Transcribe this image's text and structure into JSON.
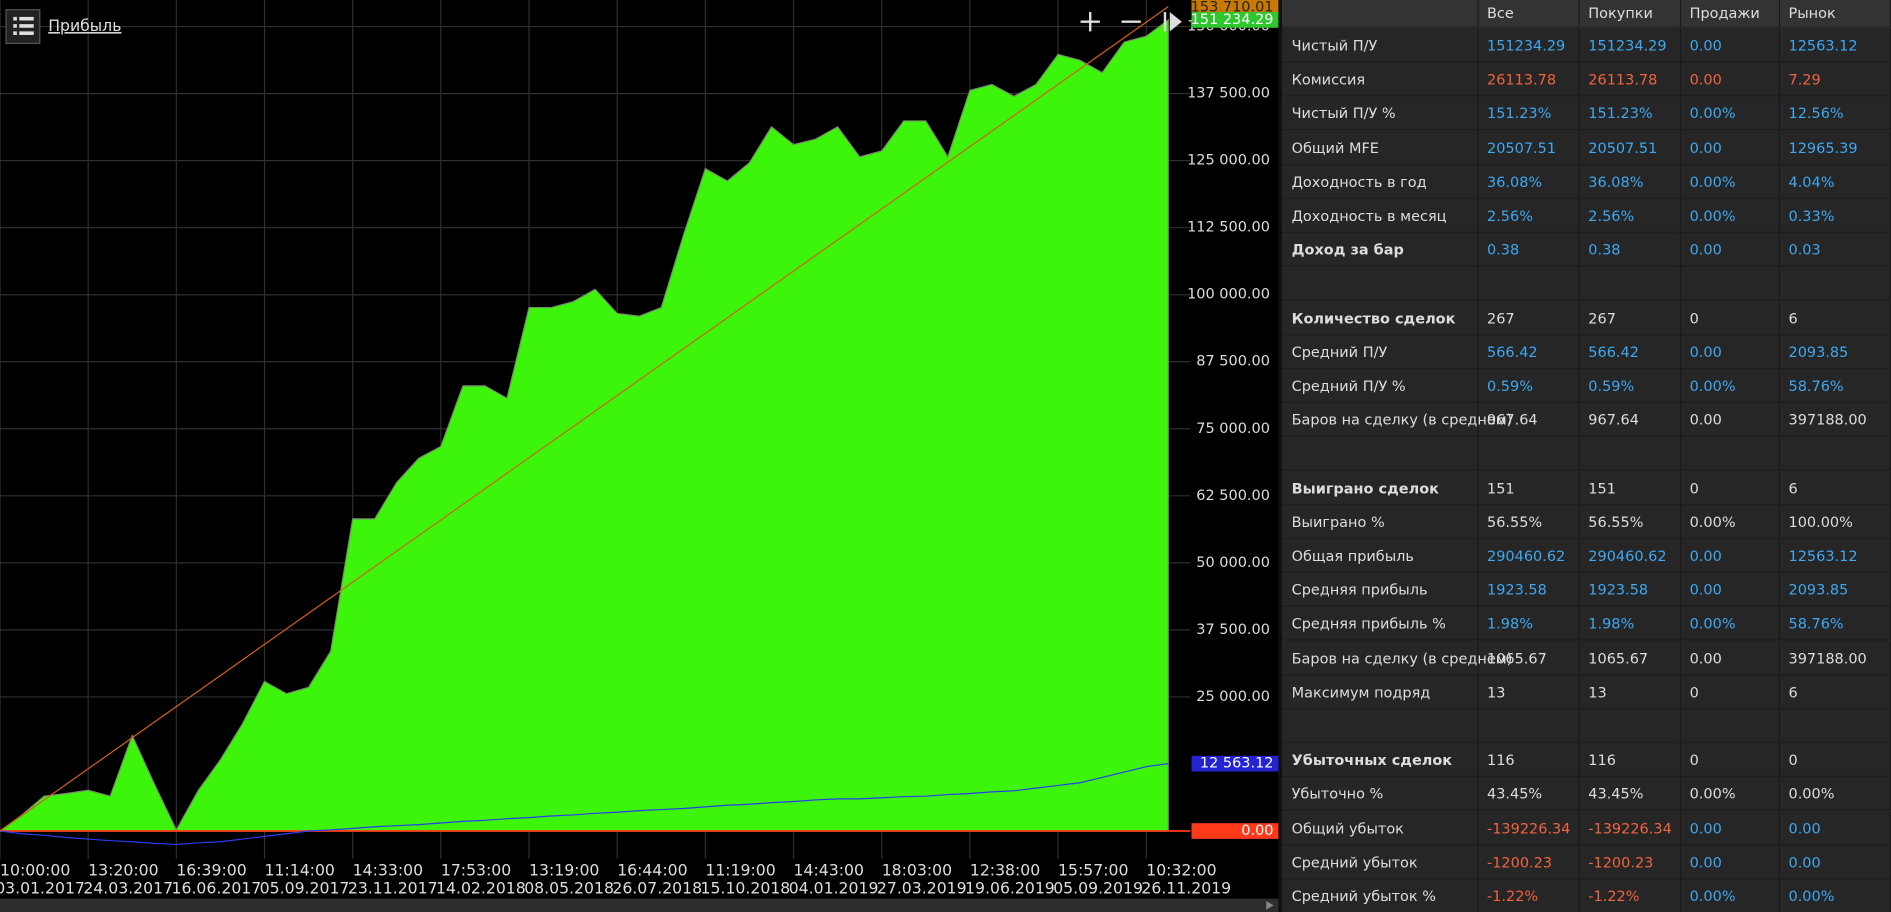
{
  "header": {
    "title": "Прибыль"
  },
  "chart_data": {
    "type": "area",
    "categories": [
      "10:00:00",
      null,
      null,
      null,
      "13:20:00",
      null,
      null,
      null,
      "16:39:00",
      null,
      null,
      null,
      "11:14:00",
      null,
      null,
      null,
      "14:33:00",
      null,
      null,
      null,
      "17:53:00",
      null,
      null,
      null,
      "13:19:00",
      null,
      null,
      null,
      "16:44:00",
      null,
      null,
      null,
      "11:19:00",
      null,
      null,
      null,
      "14:43:00",
      null,
      null,
      null,
      "18:03:00",
      null,
      null,
      null,
      "12:38:00",
      null,
      null,
      null,
      "15:57:00",
      null,
      null,
      null,
      "10:32:00",
      null
    ],
    "category_dates": [
      "03.01.2017",
      null,
      null,
      null,
      "24.03.2017",
      null,
      null,
      null,
      "16.06.2017",
      null,
      null,
      null,
      "05.09.2017",
      null,
      null,
      null,
      "23.11.2017",
      null,
      null,
      null,
      "14.02.2018",
      null,
      null,
      null,
      "08.05.2018",
      null,
      null,
      null,
      "26.07.2018",
      null,
      null,
      null,
      "15.10.2018",
      null,
      null,
      null,
      "04.01.2019",
      null,
      null,
      null,
      "27.03.2019",
      null,
      null,
      null,
      "19.06.2019",
      null,
      null,
      null,
      "05.09.2019",
      null,
      null,
      null,
      "26.11.2019",
      null
    ],
    "series": [
      {
        "type": "area",
        "color": "#3cf50a",
        "values": [
          0,
          3000,
          6500,
          7000,
          7600,
          6500,
          17800,
          8800,
          200,
          7600,
          13300,
          20000,
          27900,
          25600,
          26800,
          33500,
          58200,
          58200,
          65000,
          69500,
          71700,
          83000,
          83000,
          80700,
          97600,
          97600,
          98700,
          101000,
          96500,
          96000,
          97600,
          111000,
          123500,
          121200,
          124600,
          131300,
          128000,
          129000,
          131300,
          125700,
          126800,
          132400,
          132400,
          125700,
          138100,
          139200,
          137000,
          139200,
          144800,
          143700,
          141400,
          147100,
          148200,
          151234.29
        ]
      },
      {
        "type": "line",
        "color": "#2a3cf0",
        "values": [
          0,
          -500,
          -800,
          -1200,
          -1500,
          -1800,
          -2000,
          -2300,
          -2500,
          -2200,
          -2000,
          -1500,
          -1000,
          -500,
          0,
          200,
          500,
          800,
          1000,
          1200,
          1500,
          1800,
          2000,
          2300,
          2500,
          2800,
          3000,
          3300,
          3500,
          3800,
          4000,
          4200,
          4500,
          4800,
          5000,
          5300,
          5500,
          5800,
          6000,
          6000,
          6200,
          6400,
          6500,
          6800,
          7000,
          7300,
          7500,
          8000,
          8500,
          9000,
          10000,
          11000,
          12000,
          12563.12
        ]
      },
      {
        "type": "line",
        "color": "#d2601a",
        "x": [
          0,
          53
        ],
        "values": [
          0,
          153710.01
        ]
      }
    ],
    "ylim": [
      -5200,
      154950
    ],
    "yticks": [
      {
        "value": 25000,
        "label": "25 000.00"
      },
      {
        "value": 37500,
        "label": "37 500.00"
      },
      {
        "value": 50000,
        "label": "50 000.00"
      },
      {
        "value": 62500,
        "label": "62 500.00"
      },
      {
        "value": 75000,
        "label": "75 000.00"
      },
      {
        "value": 87500,
        "label": "87 500.00"
      },
      {
        "value": 100000,
        "label": "100 000.00"
      },
      {
        "value": 112500,
        "label": "112 500.00"
      },
      {
        "value": 125000,
        "label": "125 000.00"
      },
      {
        "value": 137500,
        "label": "137 500.00"
      },
      {
        "value": 150000,
        "label": "150 000.00"
      }
    ],
    "grid": true,
    "price_labels": [
      {
        "value": 153710.01,
        "label": "153 710.01",
        "color": "#c87a00"
      },
      {
        "value": 151234.29,
        "label": "151 234.29",
        "color": "#2ec82e"
      },
      {
        "value": 12563.12,
        "label": "12 563.12",
        "color": "#2323d2"
      },
      {
        "value": 0,
        "label": "0.00",
        "color": "#ff3a1a",
        "line": true
      }
    ]
  },
  "table": {
    "columns": [
      "Все",
      "Покупки",
      "Продажи",
      "Рынок"
    ],
    "rows": [
      {
        "label": "Чистый П/У",
        "cells": [
          "151234.29",
          "151234.29",
          "0.00",
          "12563.12"
        ],
        "tones": [
          "blue",
          "blue",
          "blue",
          "blue"
        ]
      },
      {
        "label": "Комиссия",
        "cells": [
          "26113.78",
          "26113.78",
          "0.00",
          "7.29"
        ],
        "tones": [
          "red",
          "red",
          "red",
          "red"
        ]
      },
      {
        "label": "Чистый П/У %",
        "cells": [
          "151.23%",
          "151.23%",
          "0.00%",
          "12.56%"
        ],
        "tones": [
          "blue",
          "blue",
          "blue",
          "blue"
        ]
      },
      {
        "label": "Общий MFE",
        "cells": [
          "20507.51",
          "20507.51",
          "0.00",
          "12965.39"
        ],
        "tones": [
          "blue",
          "blue",
          "blue",
          "blue"
        ]
      },
      {
        "label": "Доходность в год",
        "cells": [
          "36.08%",
          "36.08%",
          "0.00%",
          "4.04%"
        ],
        "tones": [
          "blue",
          "blue",
          "blue",
          "blue"
        ]
      },
      {
        "label": "Доходность в месяц",
        "cells": [
          "2.56%",
          "2.56%",
          "0.00%",
          "0.33%"
        ],
        "tones": [
          "blue",
          "blue",
          "blue",
          "blue"
        ]
      },
      {
        "label": "Доход за бар",
        "bold": true,
        "cells": [
          "0.38",
          "0.38",
          "0.00",
          "0.03"
        ],
        "tones": [
          "blue",
          "blue",
          "blue",
          "blue"
        ]
      },
      null,
      {
        "label": "Количество сделок",
        "bold": true,
        "cells": [
          "267",
          "267",
          "0",
          "6"
        ],
        "tones": [
          "white",
          "white",
          "white",
          "white"
        ]
      },
      {
        "label": "Средний П/У",
        "cells": [
          "566.42",
          "566.42",
          "0.00",
          "2093.85"
        ],
        "tones": [
          "blue",
          "blue",
          "blue",
          "blue"
        ]
      },
      {
        "label": "Средний П/У %",
        "cells": [
          "0.59%",
          "0.59%",
          "0.00%",
          "58.76%"
        ],
        "tones": [
          "blue",
          "blue",
          "blue",
          "blue"
        ]
      },
      {
        "label": "Баров на сделку (в среднем)",
        "cells": [
          "967.64",
          "967.64",
          "0.00",
          "397188.00"
        ],
        "tones": [
          "white",
          "white",
          "white",
          "white"
        ]
      },
      null,
      {
        "label": "Выиграно сделок",
        "bold": true,
        "cells": [
          "151",
          "151",
          "0",
          "6"
        ],
        "tones": [
          "white",
          "white",
          "white",
          "white"
        ]
      },
      {
        "label": "Выиграно %",
        "cells": [
          "56.55%",
          "56.55%",
          "0.00%",
          "100.00%"
        ],
        "tones": [
          "white",
          "white",
          "white",
          "white"
        ]
      },
      {
        "label": "Общая прибыль",
        "cells": [
          "290460.62",
          "290460.62",
          "0.00",
          "12563.12"
        ],
        "tones": [
          "blue",
          "blue",
          "blue",
          "blue"
        ]
      },
      {
        "label": "Средняя прибыль",
        "cells": [
          "1923.58",
          "1923.58",
          "0.00",
          "2093.85"
        ],
        "tones": [
          "blue",
          "blue",
          "blue",
          "blue"
        ]
      },
      {
        "label": "Средняя прибыль %",
        "cells": [
          "1.98%",
          "1.98%",
          "0.00%",
          "58.76%"
        ],
        "tones": [
          "blue",
          "blue",
          "blue",
          "blue"
        ]
      },
      {
        "label": "Баров на сделку (в среднем)",
        "cells": [
          "1065.67",
          "1065.67",
          "0.00",
          "397188.00"
        ],
        "tones": [
          "white",
          "white",
          "white",
          "white"
        ]
      },
      {
        "label": "Максимум подряд",
        "cells": [
          "13",
          "13",
          "0",
          "6"
        ],
        "tones": [
          "white",
          "white",
          "white",
          "white"
        ]
      },
      null,
      {
        "label": "Убыточных сделок",
        "bold": true,
        "cells": [
          "116",
          "116",
          "0",
          "0"
        ],
        "tones": [
          "white",
          "white",
          "white",
          "white"
        ]
      },
      {
        "label": "Убыточно %",
        "cells": [
          "43.45%",
          "43.45%",
          "0.00%",
          "0.00%"
        ],
        "tones": [
          "white",
          "white",
          "white",
          "white"
        ]
      },
      {
        "label": "Общий убыток",
        "cells": [
          "-139226.34",
          "-139226.34",
          "0.00",
          "0.00"
        ],
        "tones": [
          "red",
          "red",
          "blue",
          "blue"
        ]
      },
      {
        "label": "Средний убыток",
        "cells": [
          "-1200.23",
          "-1200.23",
          "0.00",
          "0.00"
        ],
        "tones": [
          "red",
          "red",
          "blue",
          "blue"
        ]
      },
      {
        "label": "Средний убыток %",
        "cells": [
          "-1.22%",
          "-1.22%",
          "0.00%",
          "0.00%"
        ],
        "tones": [
          "red",
          "red",
          "blue",
          "blue"
        ]
      }
    ]
  }
}
